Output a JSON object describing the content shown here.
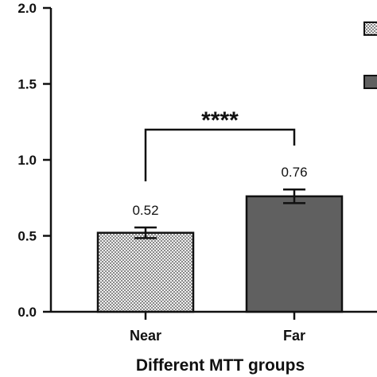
{
  "chart_data": {
    "type": "bar",
    "categories": [
      "Near",
      "Far"
    ],
    "values": [
      0.52,
      0.76
    ],
    "errors": [
      0.035,
      0.045
    ],
    "data_labels": [
      "0.52",
      "0.76"
    ],
    "xlabel": "Different MTT groups",
    "ylabel": "",
    "ylim": [
      0,
      2.0
    ],
    "yticks": [
      "0.0",
      "0.5",
      "1.0",
      "1.5",
      "2.0"
    ],
    "significance": "****",
    "bar_fills": [
      "crosshatch-light",
      "solid-gray"
    ],
    "colors": {
      "near_bar": "#d4d4d4",
      "far_bar": "#606060",
      "axis": "#111111"
    },
    "grid": false,
    "legend": "top-right (cropped)"
  }
}
